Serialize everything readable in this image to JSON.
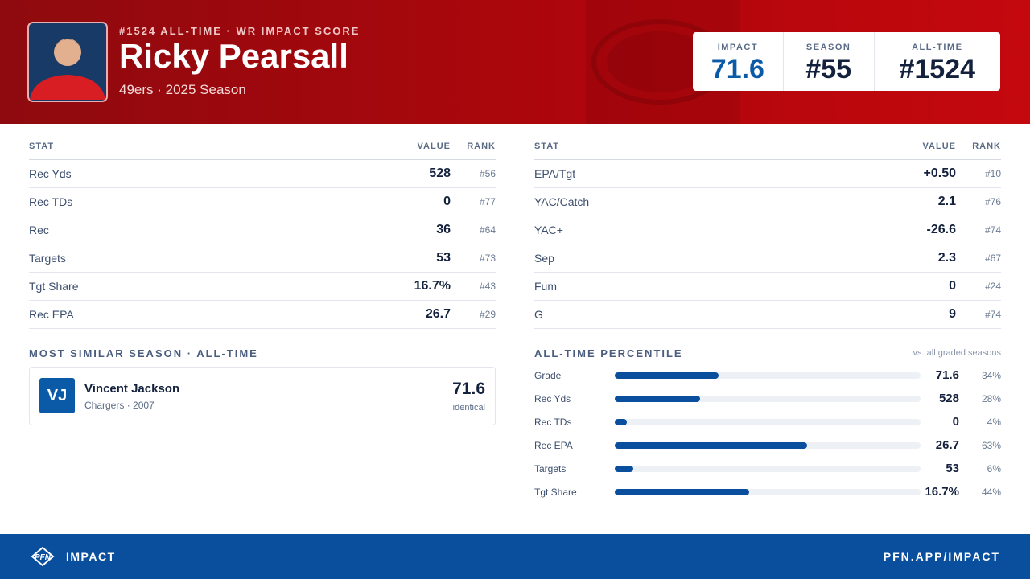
{
  "header": {
    "kicker": "#1524 ALL-TIME · WR IMPACT SCORE",
    "name": "Ricky Pearsall",
    "subtitle": "49ers · 2025 Season",
    "scores": [
      {
        "label": "IMPACT",
        "value": "71.6"
      },
      {
        "label": "SEASON",
        "value": "#55"
      },
      {
        "label": "ALL-TIME",
        "value": "#1524"
      }
    ]
  },
  "left_table": {
    "columns": [
      "STAT",
      "VALUE",
      "RANK"
    ],
    "rows": [
      [
        "Rec Yds",
        "528",
        "#56"
      ],
      [
        "Rec TDs",
        "0",
        "#77"
      ],
      [
        "Rec",
        "36",
        "#64"
      ],
      [
        "Targets",
        "53",
        "#73"
      ],
      [
        "Tgt Share",
        "16.7%",
        "#43"
      ],
      [
        "Rec EPA",
        "26.7",
        "#29"
      ]
    ]
  },
  "right_table": {
    "columns": [
      "STAT",
      "VALUE",
      "RANK"
    ],
    "rows": [
      [
        "EPA/Tgt",
        "+0.50",
        "#10"
      ],
      [
        "YAC/Catch",
        "2.1",
        "#76"
      ],
      [
        "YAC+",
        "-26.6",
        "#74"
      ],
      [
        "Sep",
        "2.3",
        "#67"
      ],
      [
        "Fum",
        "0",
        "#24"
      ],
      [
        "G",
        "9",
        "#74"
      ]
    ]
  },
  "similar": {
    "title": "MOST SIMILAR SEASON · ALL-TIME",
    "initials": "VJ",
    "name": "Vincent Jackson",
    "detail": "Chargers · 2007",
    "score": "71.6",
    "note": "identical"
  },
  "percentiles": {
    "title": "ALL-TIME PERCENTILE",
    "note": "vs. all graded seasons",
    "rows": [
      {
        "label": "Grade",
        "value": "71.6",
        "percentile": 34,
        "percentile_label": "34%"
      },
      {
        "label": "Rec Yds",
        "value": "528",
        "percentile": 28,
        "percentile_label": "28%"
      },
      {
        "label": "Rec TDs",
        "value": "0",
        "percentile": 4,
        "percentile_label": "4%"
      },
      {
        "label": "Rec EPA",
        "value": "26.7",
        "percentile": 63,
        "percentile_label": "63%"
      },
      {
        "label": "Targets",
        "value": "53",
        "percentile": 6,
        "percentile_label": "6%"
      },
      {
        "label": "Tgt Share",
        "value": "16.7%",
        "percentile": 44,
        "percentile_label": "44%"
      }
    ]
  },
  "footer": {
    "brand": "IMPACT",
    "url": "PFN.APP/IMPACT"
  }
}
